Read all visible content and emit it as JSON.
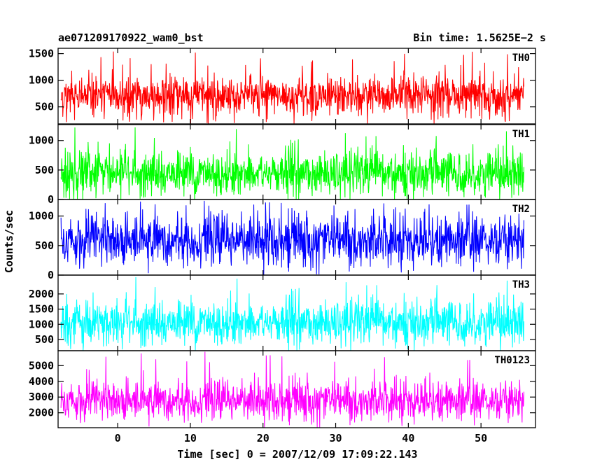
{
  "header": {
    "left_title": "ae071209170922_wam0_bst",
    "right_title": "Bin time: 1.5625E−2 s"
  },
  "chart_data": {
    "type": "line",
    "xlabel": "Time [sec] 0 = 2007/12/09 17:09:22.143",
    "ylabel": "Counts/sec",
    "xlim": [
      -8.2,
      57.5
    ],
    "x_ticks": [
      0,
      10,
      20,
      30,
      40,
      50
    ],
    "x_tick_labels": [
      "0",
      "10",
      "20",
      "30",
      "40",
      "50"
    ],
    "x_data_range": [
      -7.8,
      55.9
    ],
    "bin_time_s": 0.015625,
    "panels": [
      {
        "name": "TH0",
        "color": "#ff0000",
        "ylim": [
          180,
          1600
        ],
        "y_ticks": [
          500,
          1000,
          1500
        ],
        "y_tick_labels": [
          "500",
          "1000",
          "1500"
        ],
        "signal": {
          "mean": 700,
          "low": 300,
          "high": 1050,
          "spike_max": 1560,
          "floor_min": 180
        }
      },
      {
        "name": "TH1",
        "color": "#00ff00",
        "ylim": [
          0,
          1270
        ],
        "y_ticks": [
          0,
          500,
          1000
        ],
        "y_tick_labels": [
          "0",
          "500",
          "1000"
        ],
        "signal": {
          "mean": 440,
          "low": 80,
          "high": 850,
          "spike_max": 1250,
          "floor_min": 0
        }
      },
      {
        "name": "TH2",
        "color": "#0000ff",
        "ylim": [
          0,
          1280
        ],
        "y_ticks": [
          0,
          500,
          1000
        ],
        "y_tick_labels": [
          "0",
          "500",
          "1000"
        ],
        "signal": {
          "mean": 600,
          "low": 200,
          "high": 1050,
          "spike_max": 1260,
          "floor_min": 20
        }
      },
      {
        "name": "TH3",
        "color": "#00ffff",
        "ylim": [
          130,
          2620
        ],
        "y_ticks": [
          500,
          1000,
          1500,
          2000
        ],
        "y_tick_labels": [
          "500",
          "1000",
          "1500",
          "2000"
        ],
        "signal": {
          "mean": 1050,
          "low": 400,
          "high": 1900,
          "spike_max": 2600,
          "floor_min": 150
        }
      },
      {
        "name": "TH0123",
        "color": "#ff00ff",
        "ylim": [
          1050,
          5950
        ],
        "y_ticks": [
          2000,
          3000,
          4000,
          5000
        ],
        "y_tick_labels": [
          "2000",
          "3000",
          "4000",
          "5000"
        ],
        "signal": {
          "mean": 2800,
          "low": 1700,
          "high": 4200,
          "spike_max": 5900,
          "floor_min": 1080
        }
      }
    ]
  }
}
